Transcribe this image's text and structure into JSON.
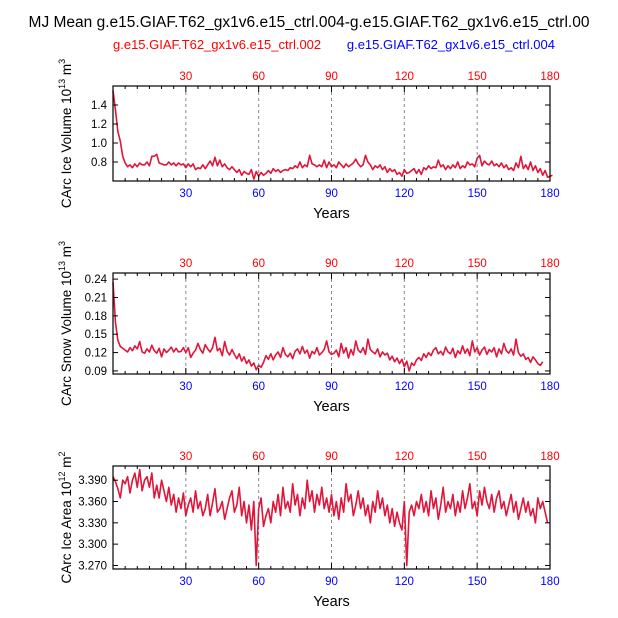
{
  "title": "MJ Mean g.e15.GIAF.T62_gx1v6.e15_ctrl.004-g.e15.GIAF.T62_gx1v6.e15_ctrl.00",
  "legend": {
    "case1": "g.e15.GIAF.T62_gx1v6.e15_ctrl.002",
    "case2": "g.e15.GIAF.T62_gx1v6.e15_ctrl.004",
    "case1_color": "#ff0000",
    "case2_color": "#0000ff"
  },
  "colors": {
    "line": "#e0153a",
    "top_ticks": "#ff0000",
    "bottom_ticks": "#0000ff",
    "grid": "#888888"
  },
  "chart_data": [
    {
      "type": "line",
      "id": "ice-volume",
      "ylabel_main": "CArc Ice Volume 10",
      "ylabel_exp": "13",
      "ylabel_unit": " m",
      "ylabel_unit_exp": "3",
      "xlabel": "Years",
      "xlim": [
        0,
        180
      ],
      "ylim": [
        0.6,
        1.6
      ],
      "yticks": [
        0.8,
        1.0,
        1.2,
        1.4
      ],
      "ytick_labels": [
        "0.8",
        "1.0",
        "1.2",
        "1.4"
      ],
      "xticks": [
        30,
        60,
        90,
        120,
        150,
        180
      ],
      "xtick_labels": [
        "30",
        "60",
        "90",
        "120",
        "150",
        "180"
      ],
      "grid_x": [
        30,
        60,
        90,
        120,
        150
      ],
      "series": [
        {
          "name": "CArc Ice Volume",
          "x_start": 0,
          "x_step": 1,
          "values": [
            1.55,
            1.35,
            1.12,
            1.02,
            0.86,
            0.79,
            0.75,
            0.77,
            0.74,
            0.78,
            0.75,
            0.79,
            0.77,
            0.77,
            0.8,
            0.76,
            0.86,
            0.86,
            0.88,
            0.79,
            0.78,
            0.77,
            0.77,
            0.8,
            0.77,
            0.79,
            0.76,
            0.79,
            0.77,
            0.78,
            0.74,
            0.78,
            0.75,
            0.78,
            0.72,
            0.74,
            0.73,
            0.77,
            0.73,
            0.77,
            0.81,
            0.76,
            0.85,
            0.76,
            0.82,
            0.75,
            0.78,
            0.74,
            0.72,
            0.75,
            0.72,
            0.69,
            0.72,
            0.66,
            0.7,
            0.68,
            0.67,
            0.72,
            0.62,
            0.7,
            0.65,
            0.69,
            0.66,
            0.68,
            0.71,
            0.68,
            0.73,
            0.7,
            0.72,
            0.69,
            0.71,
            0.72,
            0.71,
            0.74,
            0.73,
            0.76,
            0.74,
            0.8,
            0.74,
            0.77,
            0.75,
            0.87,
            0.78,
            0.77,
            0.75,
            0.77,
            0.75,
            0.82,
            0.74,
            0.8,
            0.75,
            0.77,
            0.74,
            0.8,
            0.77,
            0.74,
            0.78,
            0.75,
            0.77,
            0.79,
            0.83,
            0.78,
            0.75,
            0.77,
            0.87,
            0.8,
            0.77,
            0.72,
            0.76,
            0.74,
            0.77,
            0.72,
            0.75,
            0.69,
            0.73,
            0.7,
            0.72,
            0.67,
            0.69,
            0.65,
            0.72,
            0.68,
            0.69,
            0.71,
            0.73,
            0.68,
            0.72,
            0.67,
            0.74,
            0.72,
            0.76,
            0.73,
            0.75,
            0.74,
            0.82,
            0.75,
            0.77,
            0.72,
            0.76,
            0.73,
            0.77,
            0.74,
            0.8,
            0.73,
            0.76,
            0.74,
            0.8,
            0.77,
            0.78,
            0.75,
            0.84,
            0.87,
            0.76,
            0.81,
            0.78,
            0.77,
            0.81,
            0.76,
            0.78,
            0.75,
            0.79,
            0.74,
            0.77,
            0.72,
            0.74,
            0.71,
            0.79,
            0.74,
            0.86,
            0.73,
            0.77,
            0.72,
            0.8,
            0.71,
            0.76,
            0.69,
            0.73,
            0.66,
            0.71,
            0.64,
            0.65,
            0.66
          ]
        }
      ]
    },
    {
      "type": "line",
      "id": "snow-volume",
      "ylabel_main": "CArc Snow Volume 10",
      "ylabel_exp": "13",
      "ylabel_unit": " m",
      "ylabel_unit_exp": "3",
      "xlabel": "Years",
      "xlim": [
        0,
        180
      ],
      "ylim": [
        0.085,
        0.25
      ],
      "yticks": [
        0.09,
        0.12,
        0.15,
        0.18,
        0.21,
        0.24
      ],
      "ytick_labels": [
        "0.09",
        "0.12",
        "0.15",
        "0.18",
        "0.21",
        "0.24"
      ],
      "xticks": [
        30,
        60,
        90,
        120,
        150,
        180
      ],
      "xtick_labels": [
        "30",
        "60",
        "90",
        "120",
        "150",
        "180"
      ],
      "grid_x": [
        30,
        60,
        90,
        120,
        150
      ],
      "series": [
        {
          "name": "CArc Snow Volume",
          "x_start": 0,
          "x_step": 1,
          "values": [
            0.235,
            0.17,
            0.14,
            0.13,
            0.127,
            0.124,
            0.121,
            0.128,
            0.123,
            0.131,
            0.126,
            0.138,
            0.121,
            0.119,
            0.126,
            0.121,
            0.132,
            0.123,
            0.119,
            0.127,
            0.113,
            0.126,
            0.12,
            0.124,
            0.129,
            0.121,
            0.127,
            0.121,
            0.122,
            0.128,
            0.12,
            0.128,
            0.112,
            0.119,
            0.124,
            0.135,
            0.125,
            0.119,
            0.133,
            0.126,
            0.121,
            0.128,
            0.145,
            0.123,
            0.127,
            0.115,
            0.138,
            0.122,
            0.116,
            0.125,
            0.117,
            0.11,
            0.118,
            0.106,
            0.113,
            0.102,
            0.108,
            0.098,
            0.103,
            0.092,
            0.099,
            0.096,
            0.104,
            0.115,
            0.109,
            0.118,
            0.108,
            0.116,
            0.121,
            0.112,
            0.128,
            0.117,
            0.113,
            0.119,
            0.11,
            0.122,
            0.126,
            0.118,
            0.13,
            0.119,
            0.124,
            0.111,
            0.122,
            0.118,
            0.128,
            0.116,
            0.12,
            0.125,
            0.139,
            0.121,
            0.117,
            0.119,
            0.124,
            0.113,
            0.135,
            0.119,
            0.128,
            0.111,
            0.125,
            0.116,
            0.139,
            0.124,
            0.12,
            0.128,
            0.117,
            0.142,
            0.125,
            0.121,
            0.118,
            0.126,
            0.113,
            0.121,
            0.116,
            0.119,
            0.108,
            0.114,
            0.105,
            0.111,
            0.102,
            0.109,
            0.097,
            0.106,
            0.09,
            0.103,
            0.099,
            0.108,
            0.112,
            0.107,
            0.118,
            0.112,
            0.12,
            0.115,
            0.124,
            0.128,
            0.118,
            0.122,
            0.116,
            0.129,
            0.121,
            0.118,
            0.127,
            0.112,
            0.123,
            0.118,
            0.131,
            0.119,
            0.126,
            0.115,
            0.139,
            0.121,
            0.128,
            0.116,
            0.124,
            0.129,
            0.117,
            0.125,
            0.121,
            0.128,
            0.113,
            0.126,
            0.118,
            0.135,
            0.123,
            0.119,
            0.126,
            0.116,
            0.142,
            0.12,
            0.114,
            0.118,
            0.109,
            0.112,
            0.104,
            0.113,
            0.108,
            0.102,
            0.099,
            0.105
          ]
        }
      ]
    },
    {
      "type": "line",
      "id": "ice-area",
      "ylabel_main": "CArc Ice Area 10",
      "ylabel_exp": "12",
      "ylabel_unit": " m",
      "ylabel_unit_exp": "2",
      "xlabel": "Years",
      "xlim": [
        0,
        180
      ],
      "ylim": [
        3.265,
        3.41
      ],
      "yticks": [
        3.27,
        3.3,
        3.33,
        3.36,
        3.39
      ],
      "ytick_labels": [
        "3.270",
        "3.300",
        "3.330",
        "3.360",
        "3.390"
      ],
      "xticks": [
        30,
        60,
        90,
        120,
        150,
        180
      ],
      "xtick_labels": [
        "30",
        "60",
        "90",
        "120",
        "150",
        "180"
      ],
      "grid_x": [
        30,
        60,
        90,
        120,
        150
      ],
      "series": [
        {
          "name": "CArc Ice Area",
          "x_start": 0,
          "x_step": 1,
          "values": [
            3.395,
            3.388,
            3.378,
            3.365,
            3.39,
            3.385,
            3.395,
            3.372,
            3.39,
            3.4,
            3.38,
            3.405,
            3.375,
            3.39,
            3.395,
            3.38,
            3.4,
            3.365,
            3.383,
            3.365,
            3.39,
            3.375,
            3.36,
            3.38,
            3.355,
            3.37,
            3.345,
            3.365,
            3.35,
            3.372,
            3.34,
            3.355,
            3.365,
            3.345,
            3.375,
            3.35,
            3.36,
            3.34,
            3.35,
            3.37,
            3.34,
            3.358,
            3.378,
            3.345,
            3.35,
            3.36,
            3.335,
            3.35,
            3.365,
            3.375,
            3.345,
            3.355,
            3.38,
            3.34,
            3.36,
            3.33,
            3.355,
            3.32,
            3.36,
            3.27,
            3.35,
            3.365,
            3.325,
            3.34,
            3.35,
            3.33,
            3.36,
            3.345,
            3.37,
            3.34,
            3.38,
            3.35,
            3.36,
            3.345,
            3.385,
            3.355,
            3.37,
            3.34,
            3.365,
            3.35,
            3.39,
            3.36,
            3.375,
            3.345,
            3.37,
            3.355,
            3.38,
            3.35,
            3.365,
            3.345,
            3.37,
            3.34,
            3.36,
            3.335,
            3.365,
            3.345,
            3.385,
            3.36,
            3.37,
            3.34,
            3.355,
            3.375,
            3.35,
            3.365,
            3.34,
            3.355,
            3.33,
            3.36,
            3.345,
            3.375,
            3.35,
            3.365,
            3.34,
            3.355,
            3.33,
            3.35,
            3.325,
            3.345,
            3.33,
            3.32,
            3.36,
            3.27,
            3.345,
            3.355,
            3.34,
            3.36,
            3.35,
            3.37,
            3.345,
            3.36,
            3.34,
            3.375,
            3.35,
            3.365,
            3.335,
            3.355,
            3.38,
            3.345,
            3.36,
            3.35,
            3.37,
            3.34,
            3.36,
            3.345,
            3.375,
            3.35,
            3.365,
            3.385,
            3.35,
            3.36,
            3.34,
            3.375,
            3.355,
            3.38,
            3.36,
            3.35,
            3.37,
            3.345,
            3.365,
            3.375,
            3.35,
            3.36,
            3.34,
            3.355,
            3.37,
            3.345,
            3.36,
            3.335,
            3.35,
            3.365,
            3.345,
            3.36,
            3.34,
            3.35,
            3.33,
            3.365,
            3.35,
            3.36,
            3.345,
            3.33
          ]
        }
      ]
    }
  ]
}
